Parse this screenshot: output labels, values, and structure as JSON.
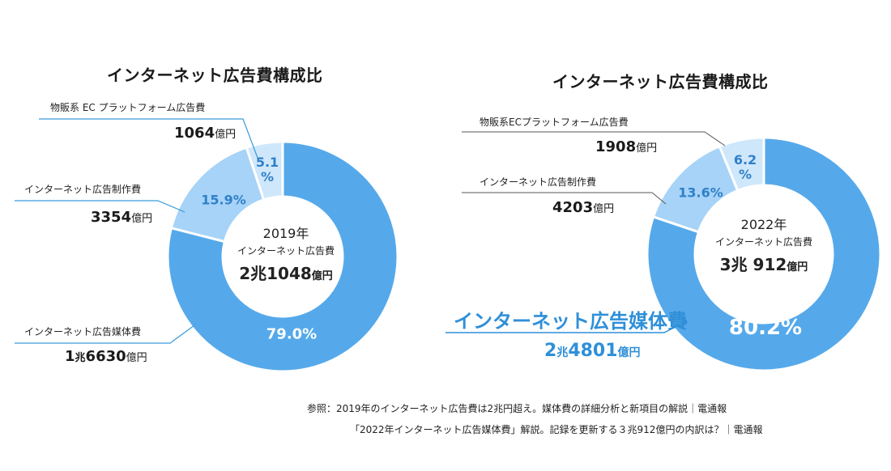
{
  "colors": {
    "media": "#55a9ea",
    "production": "#a6d3f7",
    "ec": "#cfe7fb",
    "separator": "#ffffff",
    "leader": "#555555",
    "highlight_text": "#2f8fd8",
    "pct_blue_text": "#2f80c8"
  },
  "chart_data": [
    {
      "type": "pie",
      "title": "インターネット広告費構成比",
      "center": {
        "year": "2019年",
        "label": "インターネット広告費",
        "amount_main": "2兆1048",
        "amount_unit": "億円"
      },
      "categories": [
        "インターネット広告媒体費",
        "インターネット広告制作費",
        "物販系 EC プラットフォーム広告費"
      ],
      "values": [
        79.0,
        15.9,
        5.1
      ],
      "percent_labels": [
        "79.0%",
        "15.9%",
        "5.1 %"
      ],
      "amounts": [
        {
          "num": "1兆6630",
          "unit": "億円"
        },
        {
          "num": "3354",
          "unit": "億円"
        },
        {
          "num": "1064",
          "unit": "億円"
        }
      ],
      "amount_parts": [
        {
          "a": "1",
          "b": "兆",
          "c": "6630",
          "d": "億円"
        },
        {
          "a": "3354",
          "d": "億円"
        },
        {
          "a": "1064",
          "d": "億円"
        }
      ]
    },
    {
      "type": "pie",
      "title": "インターネット広告費構成比",
      "center": {
        "year": "2022年",
        "label": "インターネット広告費",
        "amount_main": "3兆 912",
        "amount_unit": "億円"
      },
      "categories": [
        "インターネット広告媒体費",
        "インターネット広告制作費",
        "物販系ECプラットフォーム広告費"
      ],
      "values": [
        80.2,
        13.6,
        6.2
      ],
      "percent_labels": [
        "80.2%",
        "13.6%",
        "6.2 %"
      ],
      "amounts": [
        {
          "num": "2兆 4801",
          "unit": "億円"
        },
        {
          "num": "4203",
          "unit": "億円"
        },
        {
          "num": "1908",
          "unit": "億円"
        }
      ],
      "amount_parts": [
        {
          "a": "2",
          "b": "兆",
          "c": "4801",
          "d": "億円"
        },
        {
          "a": "4203",
          "d": "億円"
        },
        {
          "a": "1908",
          "d": "億円"
        }
      ]
    }
  ],
  "sources": [
    "参照：2019年のインターネット広告費は2兆円超え。媒体費の詳細分析と新項目の解説｜電通報",
    "「2022年インターネット広告媒体費」解説。記録を更新する３兆912億円の内訳は？｜電通報"
  ]
}
